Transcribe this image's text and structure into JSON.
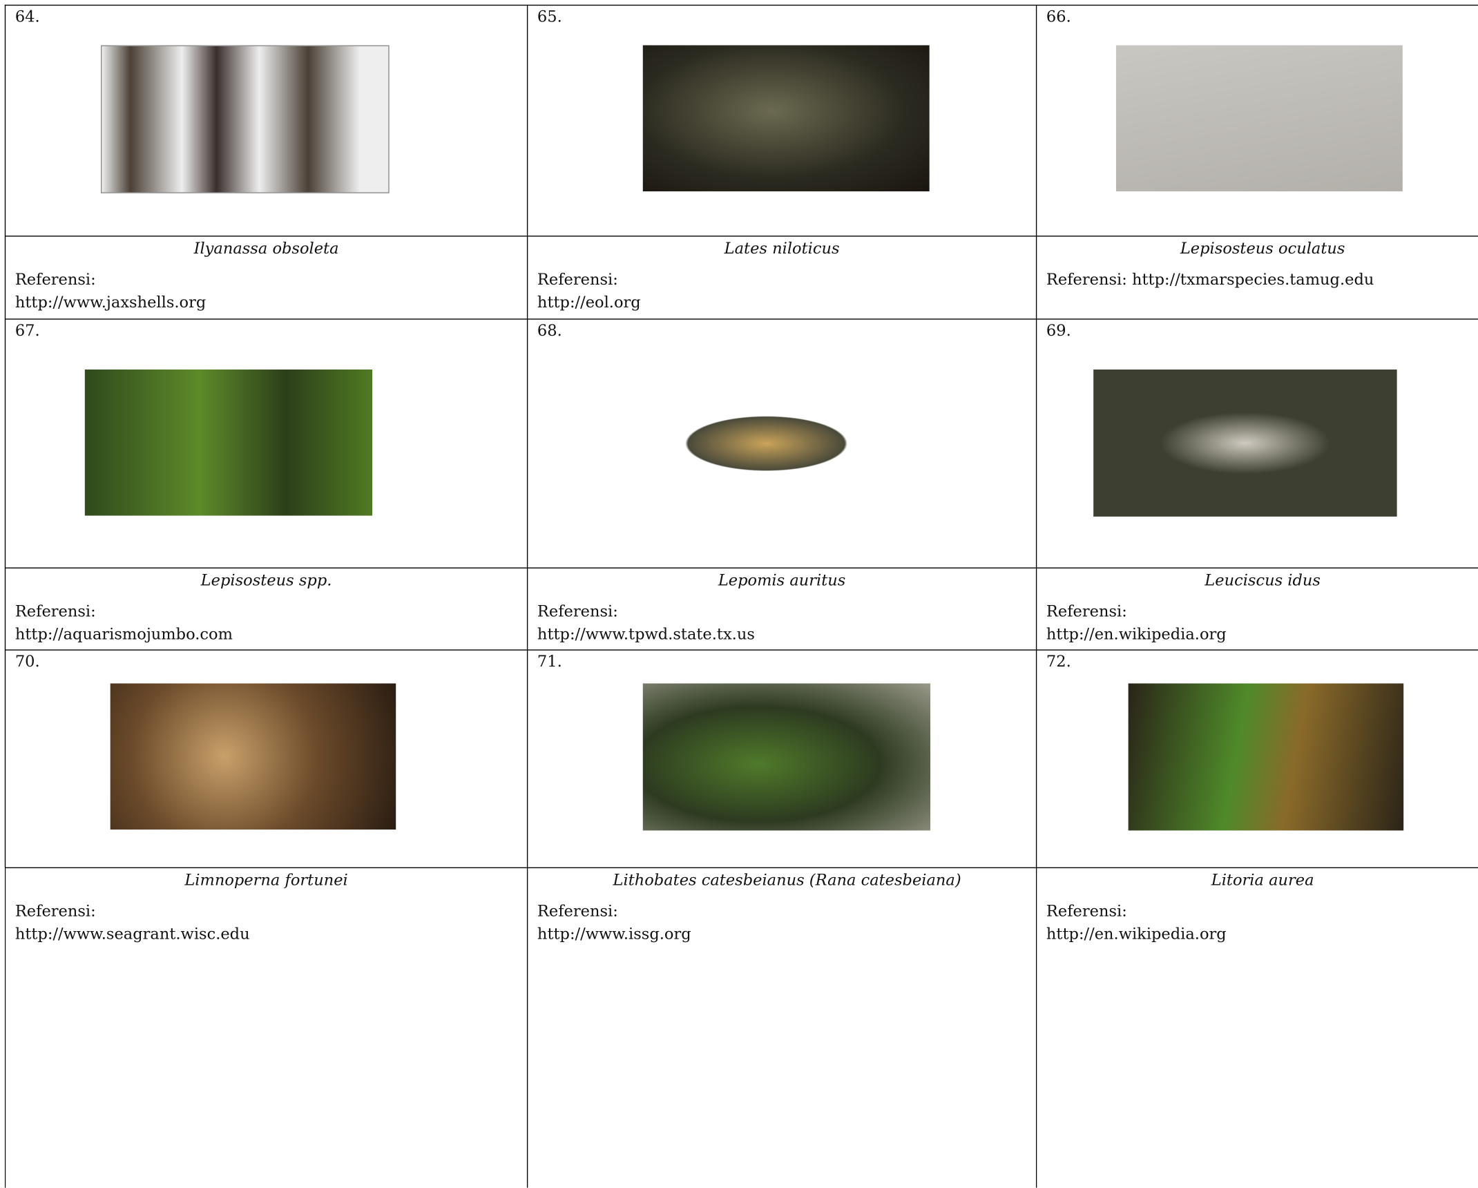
{
  "table": {
    "cells": [
      {
        "number": "64.",
        "name": "Ilyanassa obsoleta",
        "reference_label": "Referensi:",
        "reference_url": "http://www.jaxshells.org"
      },
      {
        "number": "65.",
        "name": "Lates niloticus",
        "reference_label": "Referensi:",
        "reference_url": "http://eol.org"
      },
      {
        "number": "66.",
        "name": "Lepisosteus oculatus",
        "reference_label": "Referensi:",
        "reference_url": "http://txmarspecies.tamug.edu"
      },
      {
        "number": "67.",
        "name": "Lepisosteus spp.",
        "reference_label": "Referensi:",
        "reference_url": "http://aquarismojumbo.com"
      },
      {
        "number": "68.",
        "name": "Lepomis auritus",
        "reference_label": "Referensi:",
        "reference_url": "http://www.tpwd.state.tx.us"
      },
      {
        "number": "69.",
        "name": "Leuciscus idus",
        "reference_label": "Referensi:",
        "reference_url": "http://en.wikipedia.org"
      },
      {
        "number": "70.",
        "name": "Limnoperna fortunei",
        "reference_label": "Referensi:",
        "reference_url": "http://www.seagrant.wisc.edu"
      },
      {
        "number": "71.",
        "name": "Lithobates catesbeianus (Rana catesbeiana)",
        "reference_label": "Referensi:",
        "reference_url": "http://www.issg.org"
      },
      {
        "number": "72.",
        "name": "Litoria aurea",
        "reference_label": "Referensi:",
        "reference_url": "http://en.wikipedia.org"
      }
    ]
  }
}
